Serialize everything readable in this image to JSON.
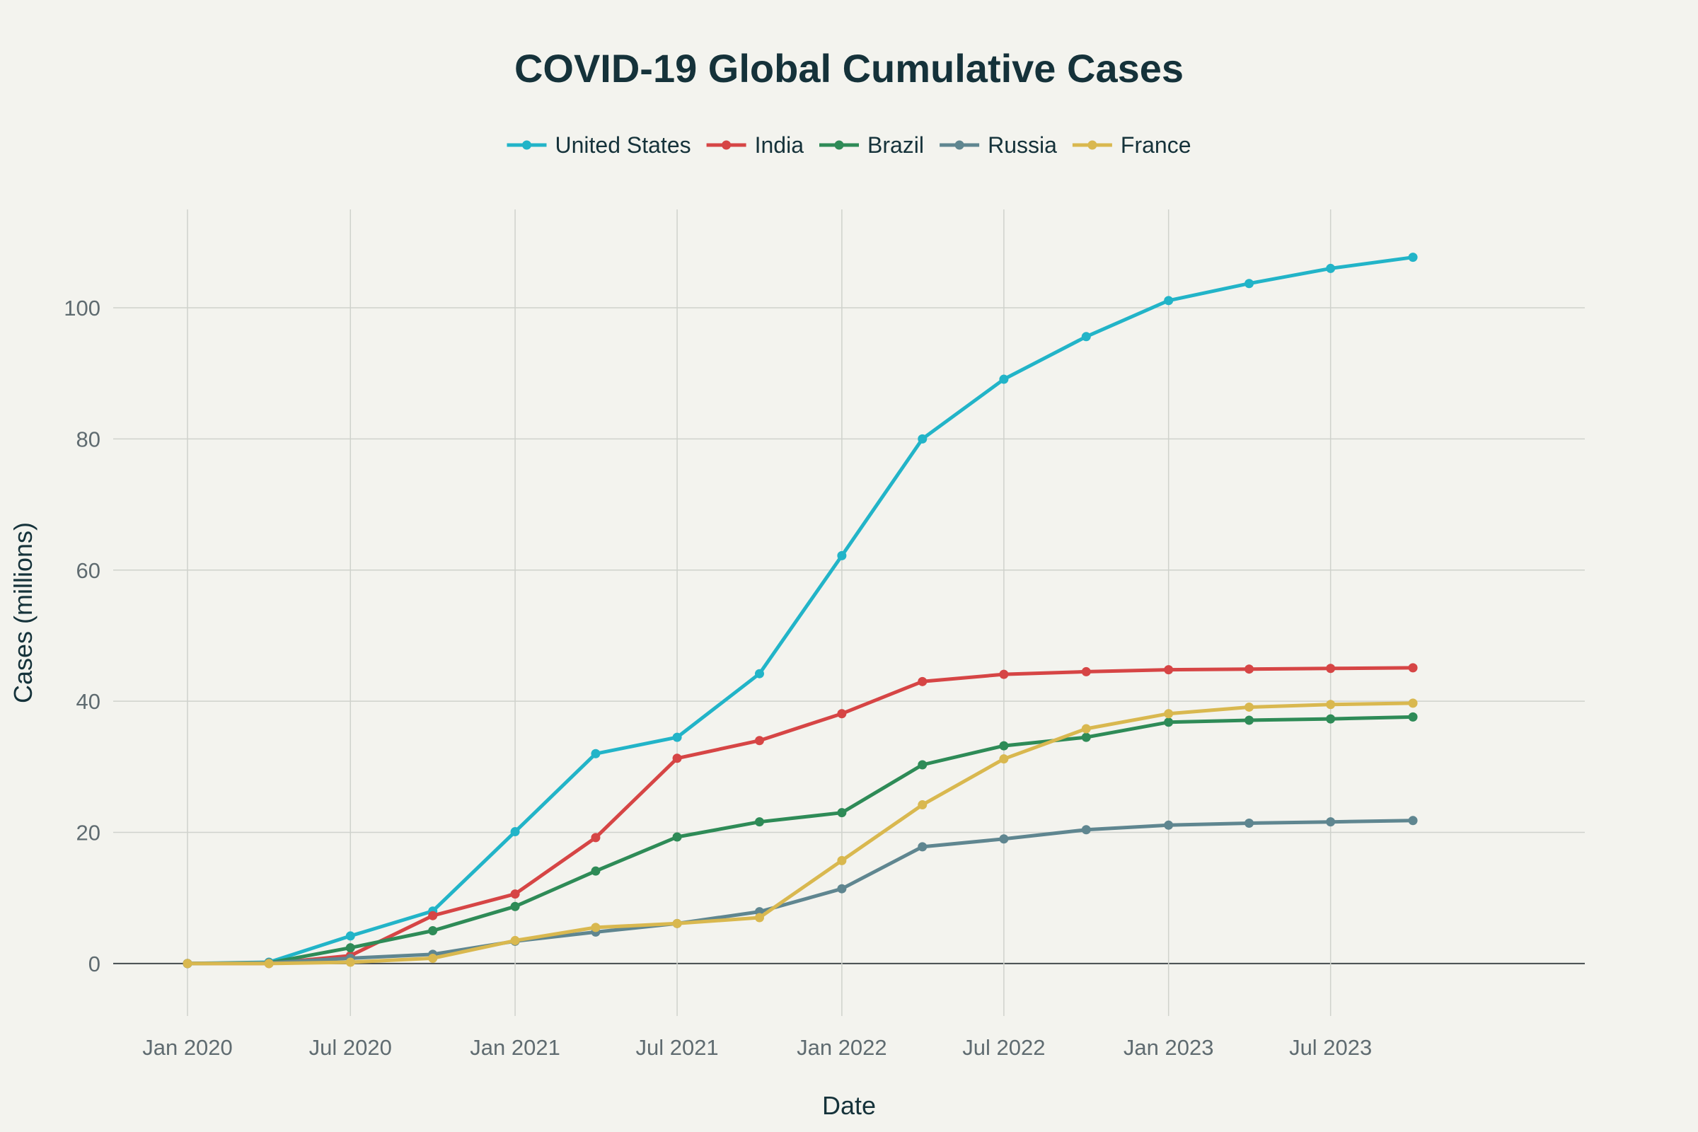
{
  "chart_data": {
    "type": "line",
    "title": "COVID-19 Global Cumulative Cases",
    "xlabel": "Date",
    "ylabel": "Cases (millions)",
    "x": [
      "2020-01-01",
      "2020-04-01",
      "2020-07-01",
      "2020-10-01",
      "2021-01-01",
      "2021-04-01",
      "2021-07-01",
      "2021-10-01",
      "2022-01-01",
      "2022-04-01",
      "2022-07-01",
      "2022-10-01",
      "2023-01-01",
      "2023-04-01",
      "2023-07-01",
      "2023-10-01"
    ],
    "x_ticks": [
      {
        "date": "2020-01-01",
        "label": "Jan 2020"
      },
      {
        "date": "2020-07-01",
        "label": "Jul 2020"
      },
      {
        "date": "2021-01-01",
        "label": "Jan 2021"
      },
      {
        "date": "2021-07-01",
        "label": "Jul 2021"
      },
      {
        "date": "2022-01-01",
        "label": "Jan 2022"
      },
      {
        "date": "2022-07-01",
        "label": "Jul 2022"
      },
      {
        "date": "2023-01-01",
        "label": "Jan 2023"
      },
      {
        "date": "2023-07-01",
        "label": "Jul 2023"
      }
    ],
    "xlim": [
      "2019-10-10",
      "2024-04-10"
    ],
    "y_ticks": [
      0,
      20,
      40,
      60,
      80,
      100
    ],
    "ylim": [
      -8,
      115
    ],
    "grid": true,
    "legend_position": "top-center",
    "series": [
      {
        "name": "United States",
        "color": "#22b4c8",
        "values": [
          0,
          0.2,
          4.2,
          8.0,
          20.1,
          32.0,
          34.5,
          44.2,
          62.2,
          80.0,
          89.1,
          95.6,
          101.1,
          103.7,
          106.0,
          107.7
        ]
      },
      {
        "name": "India",
        "color": "#d64545",
        "values": [
          0,
          0.0,
          1.2,
          7.3,
          10.6,
          19.2,
          31.3,
          34.0,
          38.1,
          43.0,
          44.1,
          44.5,
          44.8,
          44.9,
          45.0,
          45.1
        ]
      },
      {
        "name": "Brazil",
        "color": "#2e8b57",
        "values": [
          0,
          0.1,
          2.4,
          5.0,
          8.7,
          14.1,
          19.3,
          21.6,
          23.0,
          30.3,
          33.2,
          34.5,
          36.8,
          37.1,
          37.3,
          37.6
        ]
      },
      {
        "name": "Russia",
        "color": "#5f8690",
        "values": [
          0,
          0.1,
          0.8,
          1.4,
          3.4,
          4.8,
          6.1,
          7.9,
          11.4,
          17.8,
          19.0,
          20.4,
          21.1,
          21.4,
          21.6,
          21.8
        ]
      },
      {
        "name": "France",
        "color": "#d9b84f",
        "values": [
          0,
          0.0,
          0.2,
          0.8,
          3.5,
          5.5,
          6.1,
          7.0,
          15.7,
          24.2,
          31.2,
          35.8,
          38.1,
          39.1,
          39.5,
          39.7
        ]
      }
    ]
  }
}
